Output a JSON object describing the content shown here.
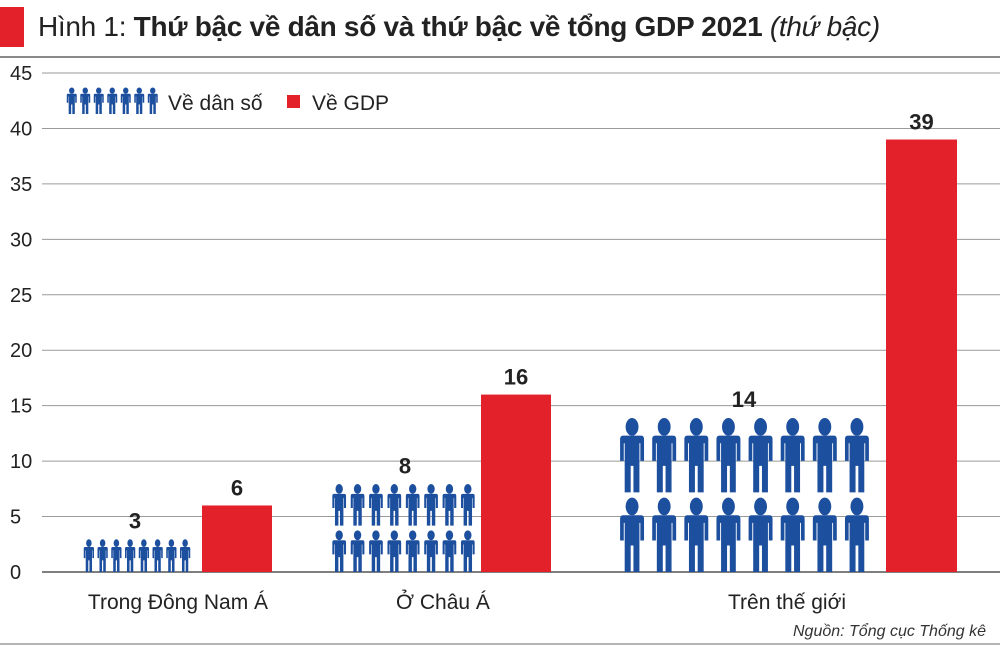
{
  "title": {
    "prefix": "Hình 1: ",
    "main": "Thứ bậc về dân số và thứ bậc về tổng GDP 2021",
    "suffix": " (thứ bậc)"
  },
  "source": "Nguồn: Tổng cục Thống kê",
  "colors": {
    "population": "#1d4f9f",
    "gdp": "#e3212b",
    "accent": "#e3212b",
    "grid": "#9a9a9a"
  },
  "chart_data": {
    "type": "bar",
    "categories": [
      "Trong Đông Nam Á",
      "Ở Châu Á",
      "Trên thế giới"
    ],
    "series": [
      {
        "name": "Về dân số",
        "values": [
          3,
          8,
          14
        ],
        "style": "person-icons"
      },
      {
        "name": "Về GDP",
        "values": [
          6,
          16,
          39
        ],
        "style": "bar"
      }
    ],
    "ylim": [
      0,
      45
    ],
    "yticks": [
      0,
      5,
      10,
      15,
      20,
      25,
      30,
      35,
      40,
      45
    ],
    "grid": true,
    "legend_position": "top-left"
  }
}
